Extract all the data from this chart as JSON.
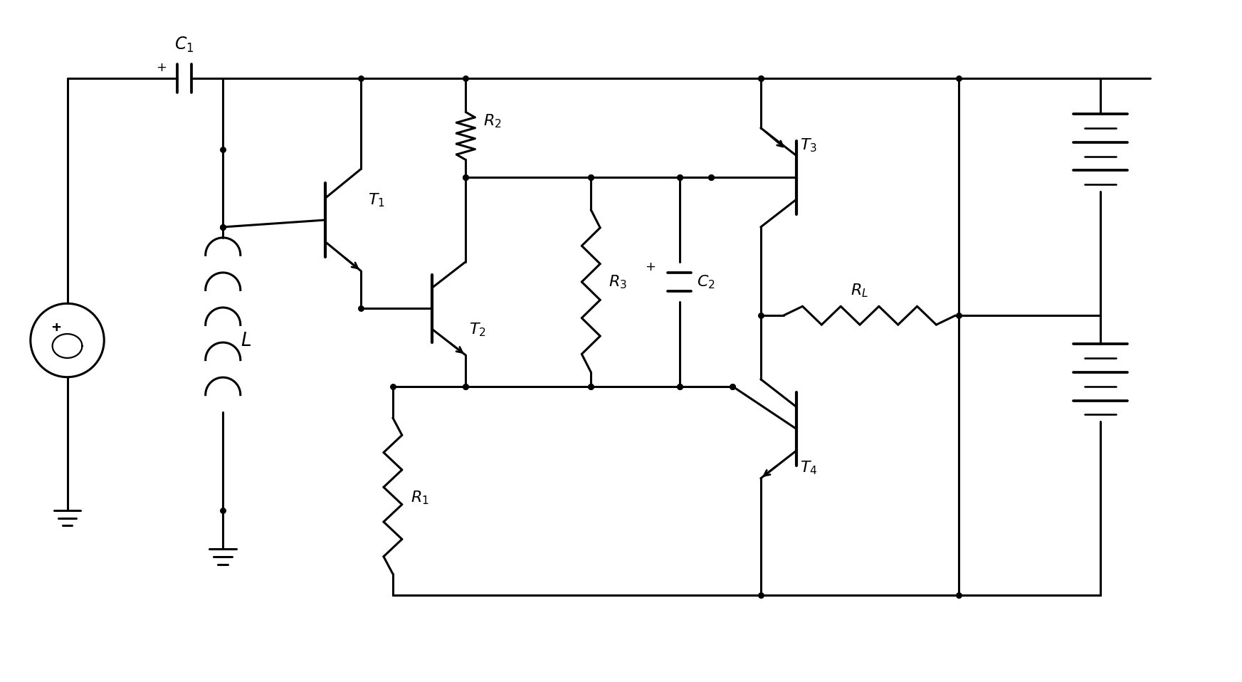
{
  "bg_color": "#ffffff",
  "lc": "#000000",
  "lw": 2.2,
  "fig_w": 17.45,
  "fig_h": 9.58
}
